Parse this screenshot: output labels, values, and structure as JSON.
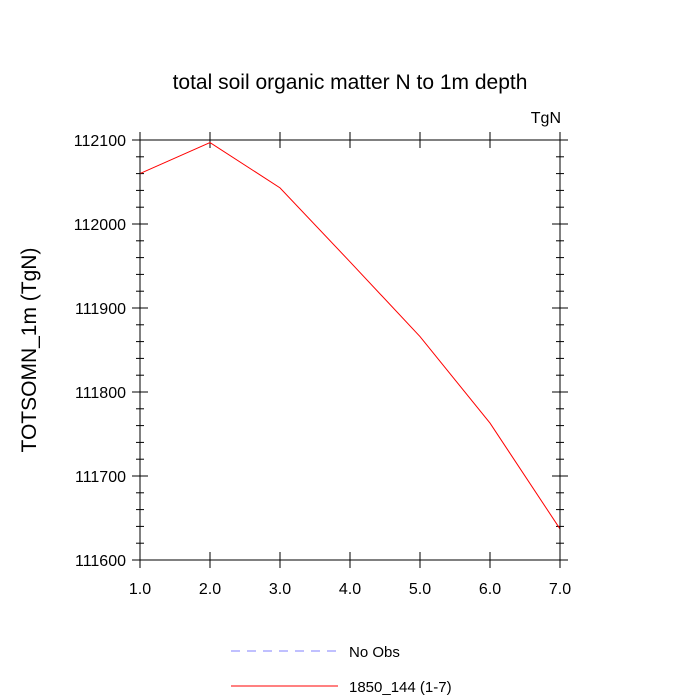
{
  "chart_data": {
    "type": "line",
    "title": "total soil organic matter N to 1m depth",
    "units_label": "TgN",
    "xlabel": "",
    "ylabel": "TOTSOMN_1m  (TgN)",
    "xlim": [
      1.0,
      7.0
    ],
    "ylim": [
      111600,
      112100
    ],
    "x_ticks": [
      1.0,
      2.0,
      3.0,
      4.0,
      5.0,
      6.0,
      7.0
    ],
    "x_tick_labels": [
      "1.0",
      "2.0",
      "3.0",
      "4.0",
      "5.0",
      "6.0",
      "7.0"
    ],
    "y_ticks": [
      111600,
      111700,
      111800,
      111900,
      112000,
      112100
    ],
    "y_tick_labels": [
      "111600",
      "111700",
      "111800",
      "111900",
      "112000",
      "112100"
    ],
    "grid": false,
    "legend_position": "bottom",
    "series": [
      {
        "name": "No Obs",
        "color": "#8080ff",
        "style": "dashed",
        "x": [],
        "y": []
      },
      {
        "name": "1850_144 (1-7)",
        "color": "#ff0000",
        "style": "solid",
        "x": [
          1,
          2,
          3,
          4,
          5,
          6,
          7
        ],
        "y": [
          112060,
          112097,
          112043,
          111955,
          111866,
          111763,
          111637
        ]
      }
    ]
  }
}
